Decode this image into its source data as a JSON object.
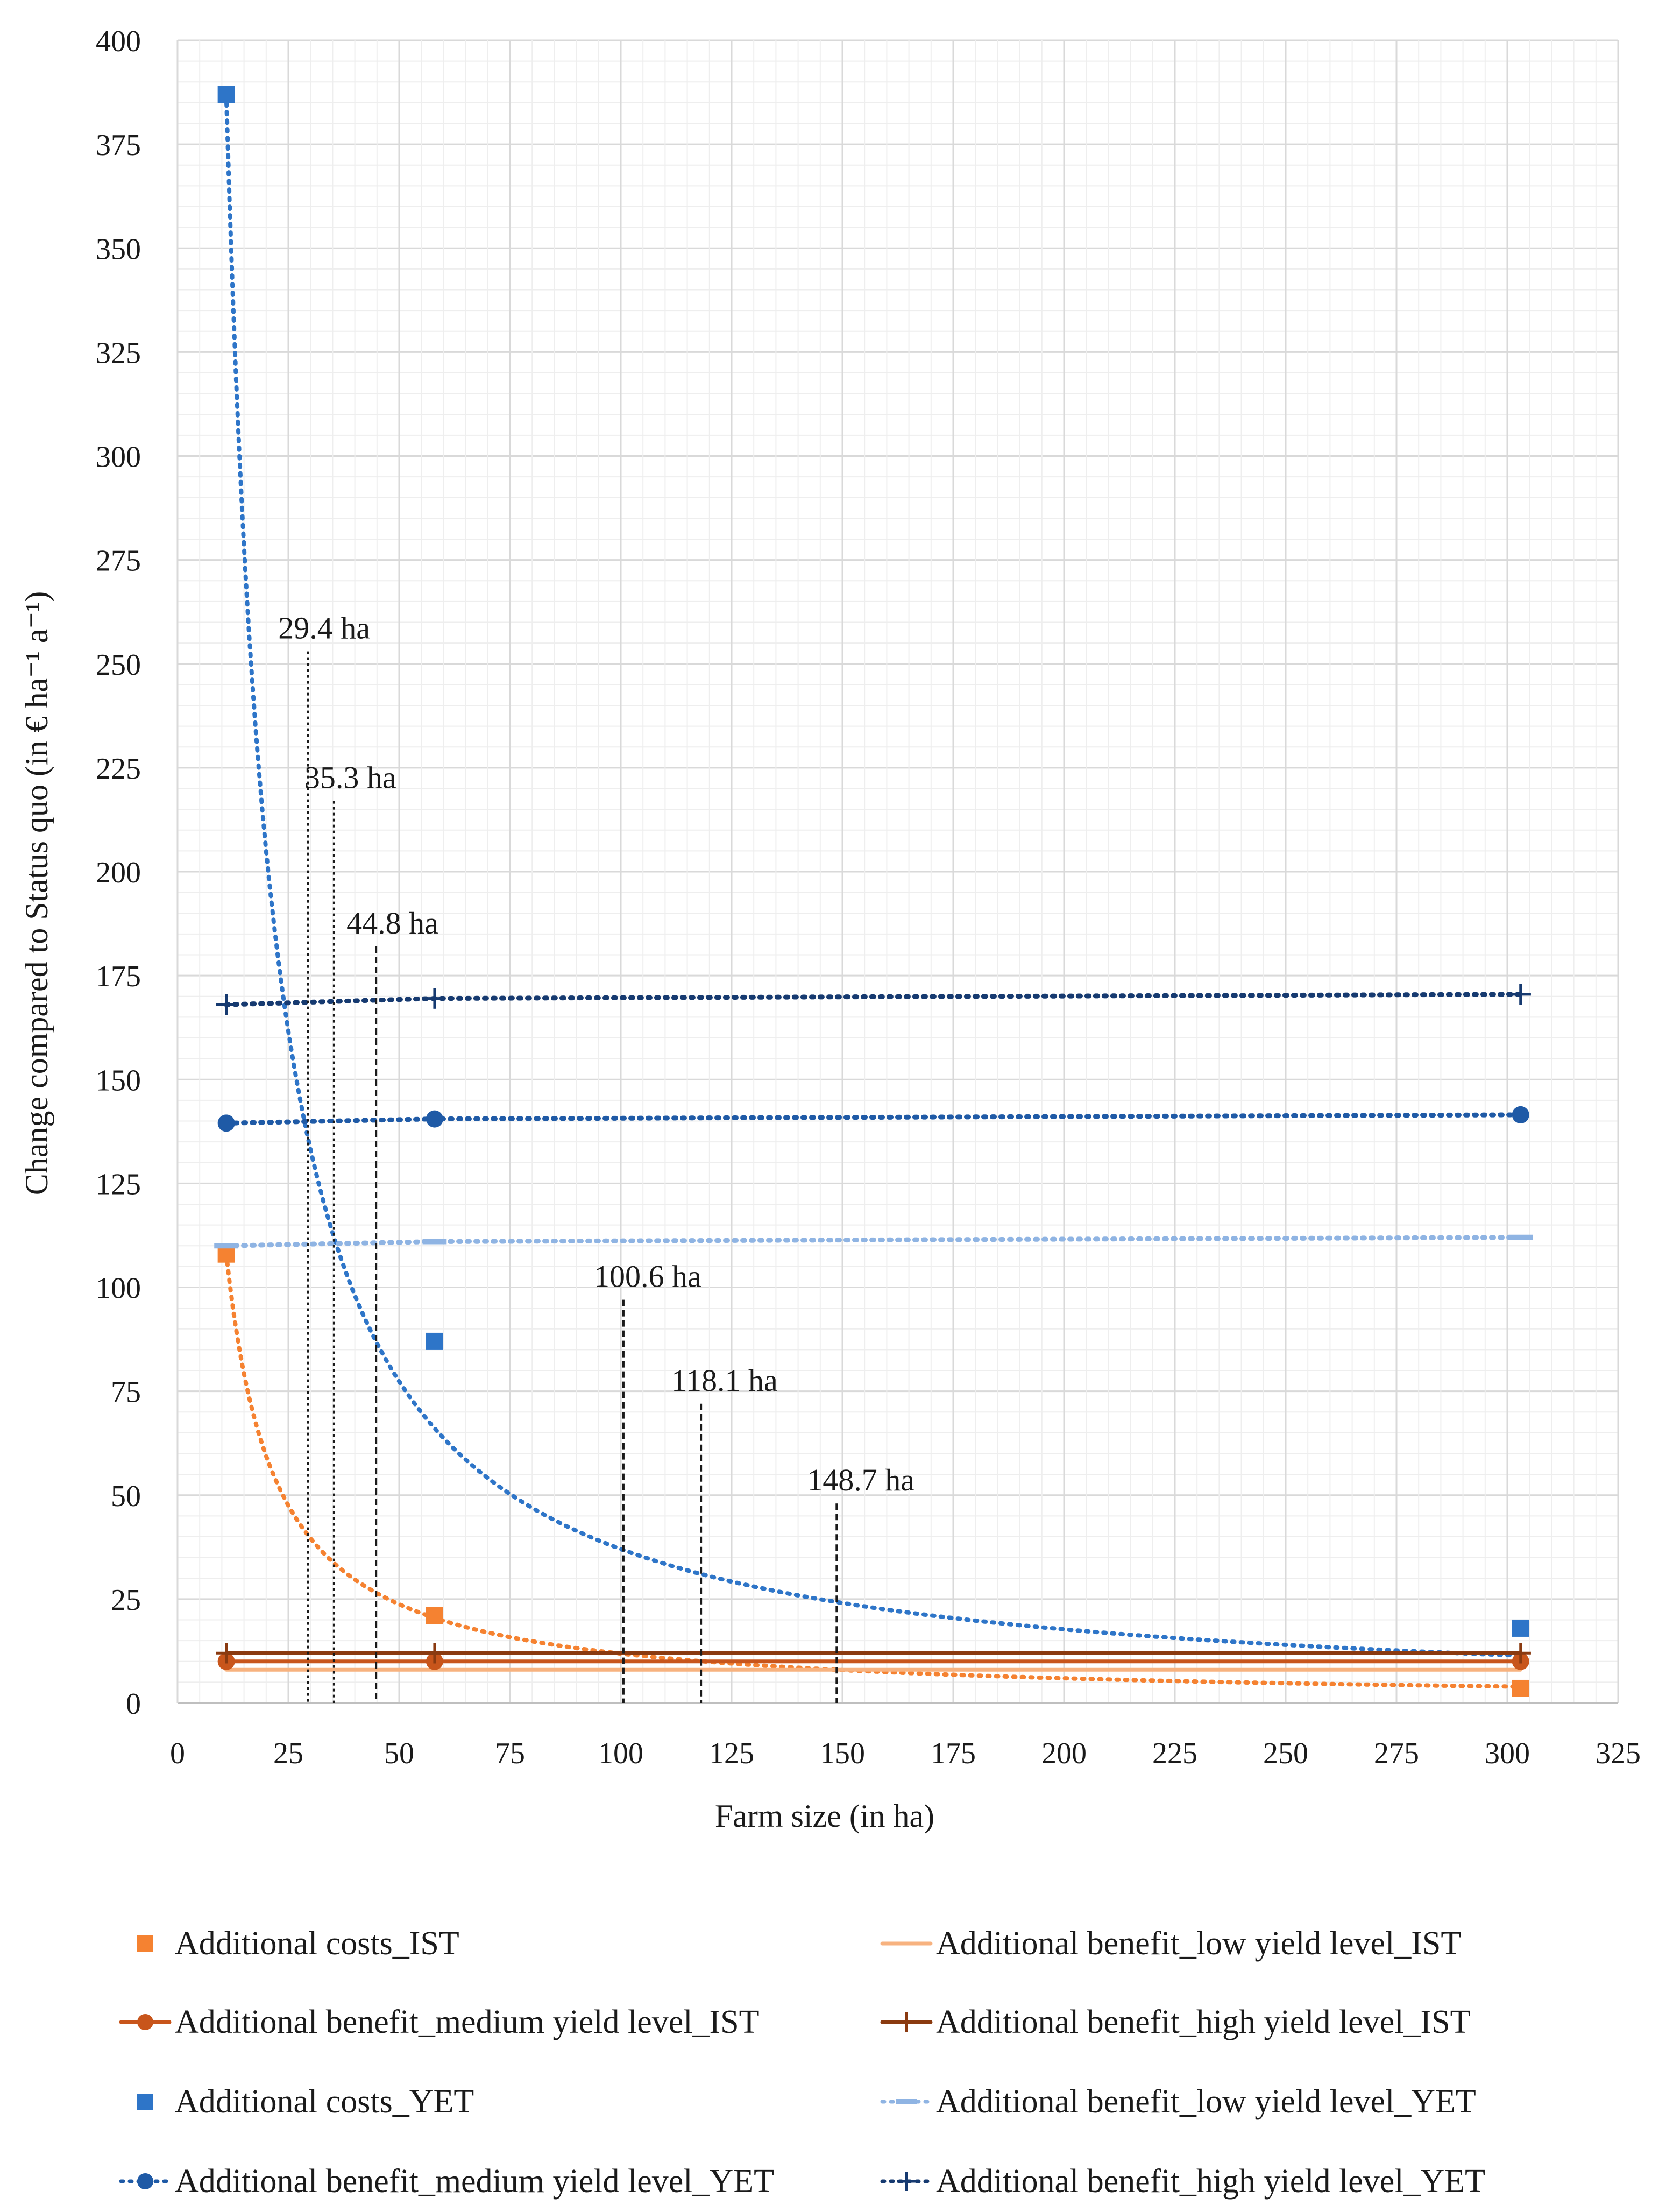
{
  "chart_data": {
    "type": "scatter",
    "xlabel": "Farm size (in ha)",
    "ylabel": "Change compared to Status quo (in € ha⁻¹ a⁻¹)",
    "xlim": [
      0,
      325
    ],
    "ylim": [
      0,
      400
    ],
    "x_ticks": [
      0,
      25,
      50,
      75,
      100,
      125,
      150,
      175,
      200,
      225,
      250,
      275,
      300,
      325
    ],
    "y_ticks": [
      0,
      25,
      50,
      75,
      100,
      125,
      150,
      175,
      200,
      225,
      250,
      275,
      300,
      325,
      350,
      375,
      400
    ],
    "grid": true,
    "legend_position": "bottom",
    "series": [
      {
        "name": "Additional costs_IST",
        "color": "#f58231",
        "marker": "square",
        "line": "none",
        "x": [
          11,
          58,
          303
        ],
        "y": [
          108,
          21,
          3.5
        ],
        "trend": {
          "type": "power",
          "a": 1188,
          "b": -1.0,
          "style": "dotted"
        }
      },
      {
        "name": "Additional benefit_low yield level_IST",
        "color": "#f7b27f",
        "marker": "none",
        "line": "solid",
        "x": [
          11,
          58,
          303
        ],
        "y": [
          8,
          8,
          8
        ]
      },
      {
        "name": "Additional benefit_medium yield level_IST",
        "color": "#c8551b",
        "marker": "circle",
        "line": "solid",
        "x": [
          11,
          58,
          303
        ],
        "y": [
          10,
          10,
          10
        ]
      },
      {
        "name": "Additional benefit_high yield level_IST",
        "color": "#8a3a10",
        "marker": "plus",
        "line": "solid",
        "x": [
          11,
          58,
          303
        ],
        "y": [
          12,
          12,
          12
        ]
      },
      {
        "name": "Additional costs_YET",
        "color": "#2e75c8",
        "marker": "square",
        "line": "none",
        "x": [
          11,
          58,
          303
        ],
        "y": [
          387,
          87,
          18
        ],
        "trend": {
          "type": "power",
          "a": 4950,
          "b": -1.063,
          "style": "dotted"
        }
      },
      {
        "name": "Additional benefit_low yield level_YET",
        "color": "#8fb4e3",
        "marker": "dash",
        "line": "dotted",
        "x": [
          11,
          58,
          303
        ],
        "y": [
          110,
          111,
          112
        ]
      },
      {
        "name": "Additional benefit_medium yield level_YET",
        "color": "#1f5aa6",
        "marker": "circle",
        "line": "dotted",
        "x": [
          11,
          58,
          303
        ],
        "y": [
          139.5,
          140.5,
          141.5
        ]
      },
      {
        "name": "Additional benefit_high yield level_YET",
        "color": "#163a70",
        "marker": "plus",
        "line": "dotted",
        "x": [
          11,
          58,
          303
        ],
        "y": [
          168,
          169.5,
          170.5
        ]
      }
    ],
    "annotations": [
      {
        "text": "29.4 ha",
        "x": 29.4,
        "y_top": 253,
        "style": "dotted"
      },
      {
        "text": "35.3 ha",
        "x": 35.3,
        "y_top": 217,
        "style": "dotted"
      },
      {
        "text": "44.8 ha",
        "x": 44.8,
        "y_top": 182,
        "style": "dashed"
      },
      {
        "text": "100.6 ha",
        "x": 100.6,
        "y_top": 97,
        "style": "dashed"
      },
      {
        "text": "118.1 ha",
        "x": 118.1,
        "y_top": 72,
        "style": "dashed"
      },
      {
        "text": "148.7 ha",
        "x": 148.7,
        "y_top": 48,
        "style": "dashed"
      }
    ]
  }
}
